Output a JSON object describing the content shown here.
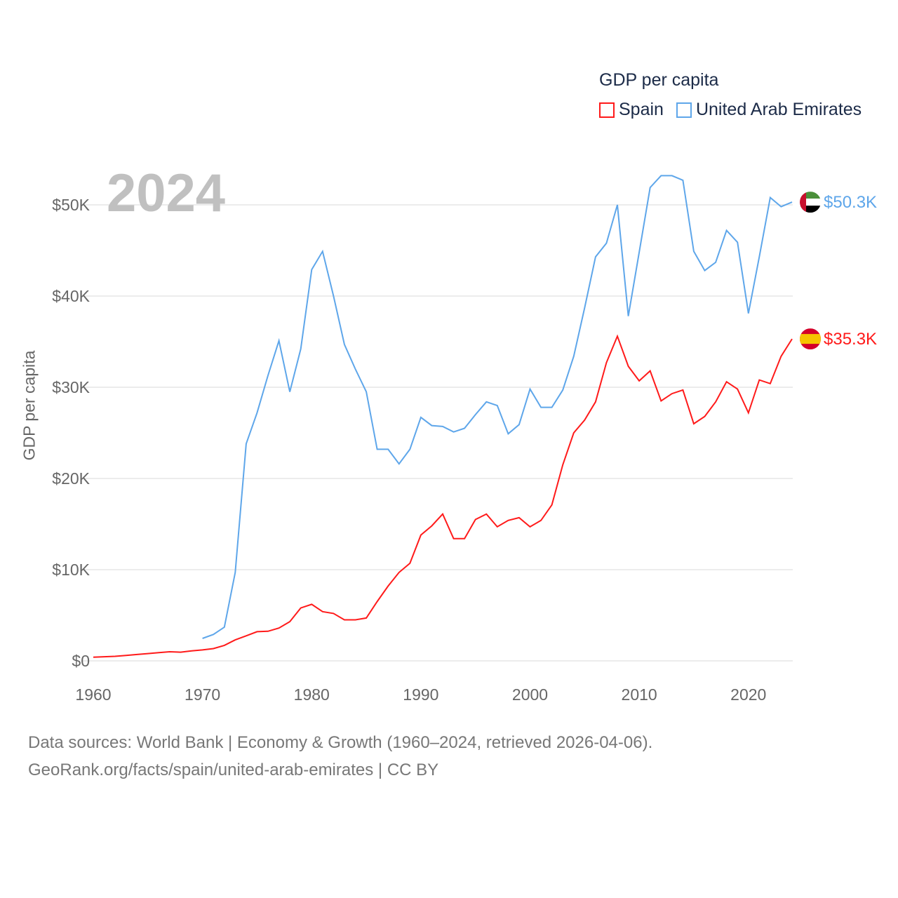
{
  "legend": {
    "title": "GDP per capita",
    "items": [
      {
        "name": "Spain",
        "color": "#ff1a1a"
      },
      {
        "name": "United Arab Emirates",
        "color": "#5ea6ea"
      }
    ]
  },
  "year_label": "2024",
  "footer": {
    "line1": "Data sources: World Bank | Economy & Growth (1960–2024, retrieved 2026-04-06).",
    "line2": "GeoRank.org/facts/spain/united-arab-emirates | CC BY"
  },
  "chart_data": {
    "type": "line",
    "title": "GDP per capita",
    "xlabel": "",
    "ylabel": "GDP per capita",
    "xlim": [
      1960,
      2024
    ],
    "ylim": [
      0,
      55000
    ],
    "xticks": [
      1960,
      1970,
      1980,
      1990,
      2000,
      2010,
      2020
    ],
    "yticks": [
      {
        "v": 0,
        "label": "$0"
      },
      {
        "v": 10000,
        "label": "$10K"
      },
      {
        "v": 20000,
        "label": "$20K"
      },
      {
        "v": 30000,
        "label": "$30K"
      },
      {
        "v": 40000,
        "label": "$40K"
      },
      {
        "v": 50000,
        "label": "$50K"
      }
    ],
    "grid": true,
    "legend_placement": "top-right",
    "series": [
      {
        "name": "Spain",
        "color": "#ff1a1a",
        "end_label": "$35.3K",
        "start_year": 1960,
        "values": [
          400,
          450,
          500,
          600,
          700,
          800,
          900,
          1000,
          950,
          1100,
          1200,
          1350,
          1700,
          2300,
          2750,
          3200,
          3250,
          3600,
          4300,
          5800,
          6200,
          5400,
          5200,
          4500,
          4500,
          4700,
          6500,
          8200,
          9700,
          10700,
          13800,
          14800,
          16100,
          13400,
          13400,
          15500,
          16100,
          14700,
          15400,
          15700,
          14700,
          15400,
          17100,
          21500,
          25000,
          26400,
          28400,
          32700,
          35600,
          32300,
          30700,
          31800,
          28500,
          29300,
          29700,
          26000,
          26800,
          28400,
          30600,
          29800,
          27200,
          30800,
          30400,
          33400,
          35300
        ]
      },
      {
        "name": "United Arab Emirates",
        "color": "#5ea6ea",
        "end_label": "$50.3K",
        "start_year": 1970,
        "values": [
          2460,
          2900,
          3700,
          9700,
          23800,
          27200,
          31300,
          35100,
          29500,
          34200,
          42900,
          44900,
          40000,
          34700,
          32000,
          29500,
          23200,
          23200,
          21600,
          23200,
          26700,
          25800,
          25700,
          25100,
          25500,
          27000,
          28400,
          28000,
          24900,
          25900,
          29800,
          27800,
          27800,
          29700,
          33400,
          38700,
          44300,
          45800,
          50000,
          37800,
          44800,
          51900,
          53200,
          53200,
          52700,
          44900,
          42800,
          43700,
          47200,
          45900,
          38100,
          44300,
          50800,
          49800,
          50300
        ]
      }
    ]
  }
}
